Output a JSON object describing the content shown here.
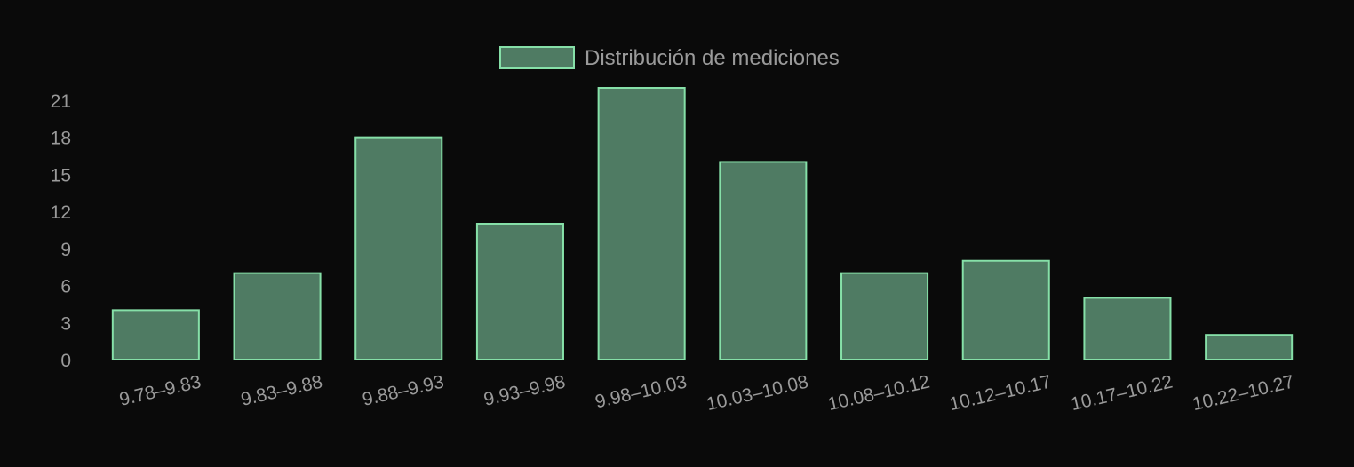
{
  "chart_data": {
    "type": "bar",
    "categories": [
      "9.78–9.83",
      "9.83–9.88",
      "9.88–9.93",
      "9.93–9.98",
      "9.98–10.03",
      "10.03–10.08",
      "10.08–10.12",
      "10.12–10.17",
      "10.17–10.22",
      "10.22–10.27"
    ],
    "series": [
      {
        "name": "Distribución de mediciones",
        "values": [
          4,
          7,
          18,
          11,
          22,
          16,
          7,
          8,
          5,
          2
        ]
      }
    ],
    "yticks": [
      0,
      3,
      6,
      9,
      12,
      15,
      18,
      21
    ],
    "ylim": [
      0,
      22
    ],
    "legend_position": "top-center",
    "grid": false,
    "colors": {
      "bar_fill": "#4f7b63",
      "bar_border": "#86e0a8",
      "text": "#9a9a9a",
      "background": "#0a0a0a"
    }
  }
}
